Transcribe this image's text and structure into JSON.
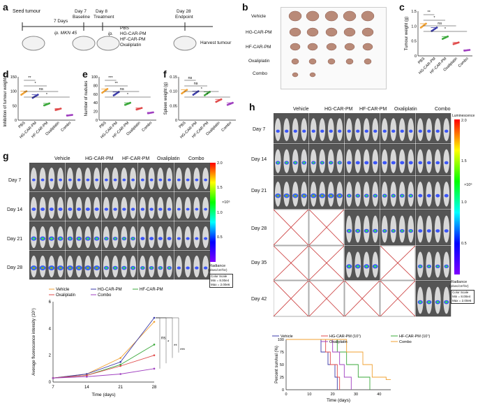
{
  "panel_labels": {
    "a": "a",
    "b": "b",
    "c": "c",
    "d": "d",
    "e": "e",
    "f": "f",
    "g": "g",
    "h": "h"
  },
  "timeline": {
    "seed": "Seed tumour",
    "ip1": "ip. MKN 45",
    "days7": "7 Days",
    "day7": "Day 7",
    "baseline": "Baseline",
    "day8": "Day 8",
    "treatment": "Treatment",
    "day28": "Day 28",
    "endpoint": "Endpoint",
    "ip2": "ip.",
    "drugs": [
      "PBS",
      "HG-CAR-PM",
      "HF-CAR-PM",
      "Oxaliplatin"
    ],
    "harvest": "Harvest tumour"
  },
  "tumour_photo": {
    "groups": [
      "Vehicle",
      "HG-CAR-PM",
      "HF-CAR-PM",
      "Oxaliplatin",
      "Combo"
    ]
  },
  "groups_short": [
    "PBS",
    "HG-CAR-PM",
    "HF-CAR-PM",
    "Oxaliplatin",
    "Combo"
  ],
  "colors": {
    "PBS": "#f0a030",
    "HG": "#3a3aa8",
    "HF": "#3aa83a",
    "OX": "#e04a4a",
    "CO": "#a040c0"
  },
  "chart_data": [
    {
      "panel": "c",
      "type": "scatter",
      "ylabel": "Tumour weight (g)",
      "ylim": [
        0,
        1.5
      ],
      "yticks": [
        "0",
        "0.5",
        "1.0",
        "1.5"
      ],
      "categories": [
        "PBS",
        "HG-CAR-PM",
        "HF-CAR-PM",
        "Oxaliplatin",
        "Combo"
      ],
      "means": [
        1.08,
        0.95,
        0.65,
        0.45,
        0.2
      ],
      "sig": [
        "**",
        "*",
        "ns",
        "*"
      ]
    },
    {
      "panel": "d",
      "type": "scatter",
      "ylabel": "Inhibition of tumour weight (%)",
      "ylim": [
        0,
        150
      ],
      "yticks": [
        "0",
        "50",
        "100",
        "150"
      ],
      "categories": [
        "PBS",
        "HG-CAR-PM",
        "HF-CAR-PM",
        "Oxaliplatin",
        "Combo"
      ],
      "means": [
        100,
        88,
        58,
        40,
        18
      ],
      "sig": [
        "**",
        "*",
        "ns",
        "*"
      ]
    },
    {
      "panel": "e",
      "type": "scatter",
      "ylabel": "Number of nudules",
      "ylim": [
        0,
        100
      ],
      "yticks": [
        "0",
        "20",
        "40",
        "60",
        "80",
        "100"
      ],
      "categories": [
        "PBS",
        "HG-CAR-PM",
        "HF-CAR-PM",
        "Oxaliplatin",
        "Combo"
      ],
      "means": [
        72,
        65,
        40,
        28,
        18
      ],
      "sig": [
        "***",
        "**",
        "ns",
        "*"
      ]
    },
    {
      "panel": "f",
      "type": "scatter",
      "ylabel": "Spleen weight (g)",
      "ylim": [
        0,
        0.15
      ],
      "yticks": [
        "0",
        "0.05",
        "0.10",
        "0.15"
      ],
      "categories": [
        "PBS",
        "HG-CAR-PM",
        "HF-CAR-PM",
        "Oxaliplatin",
        "Combo"
      ],
      "means": [
        0.105,
        0.1,
        0.098,
        0.072,
        0.06
      ],
      "sig": [
        "ns",
        "ns",
        "*",
        "*"
      ]
    },
    {
      "panel": "g-line",
      "type": "line",
      "xlabel": "Time (days)",
      "ylabel": "Average fluorescence intensity (10⁶)",
      "x": [
        7,
        14,
        21,
        28
      ],
      "xlim": [
        7,
        28
      ],
      "ylim": [
        0,
        6
      ],
      "yticks": [
        "0",
        "2",
        "4",
        "6"
      ],
      "series": [
        {
          "name": "Vehicle",
          "values": [
            0.3,
            0.6,
            1.8,
            4.5
          ]
        },
        {
          "name": "HG-CAR-PM",
          "values": [
            0.3,
            0.6,
            1.5,
            4.8
          ]
        },
        {
          "name": "HF-CAR-PM",
          "values": [
            0.3,
            0.5,
            1.3,
            2.8
          ]
        },
        {
          "name": "Oxaliplatin",
          "values": [
            0.3,
            0.5,
            1.2,
            2.0
          ]
        },
        {
          "name": "Combo",
          "values": [
            0.3,
            0.4,
            0.6,
            1.0
          ]
        }
      ],
      "sig": [
        "ns",
        "*",
        "**",
        "***"
      ]
    },
    {
      "panel": "h-survival",
      "type": "line",
      "xlabel": "Time (days)",
      "ylabel": "Percent survival (%)",
      "xlim": [
        0,
        45
      ],
      "ylim": [
        0,
        100
      ],
      "xticks": [
        "0",
        "10",
        "20",
        "30",
        "40"
      ],
      "yticks": [
        "0",
        "25",
        "50",
        "75",
        "100"
      ],
      "series": [
        {
          "name": "Vehicle",
          "steps": [
            [
              0,
              100
            ],
            [
              15,
              100
            ],
            [
              15,
              75
            ],
            [
              18,
              75
            ],
            [
              18,
              50
            ],
            [
              21,
              50
            ],
            [
              21,
              25
            ],
            [
              22,
              25
            ],
            [
              22,
              0
            ]
          ]
        },
        {
          "name": "HG-CAR-PM (10⁷)",
          "steps": [
            [
              0,
              100
            ],
            [
              17,
              100
            ],
            [
              17,
              75
            ],
            [
              19,
              75
            ],
            [
              19,
              50
            ],
            [
              22,
              50
            ],
            [
              22,
              25
            ],
            [
              23,
              25
            ],
            [
              23,
              0
            ]
          ]
        },
        {
          "name": "HF-CAR-PM (10⁷)",
          "steps": [
            [
              0,
              100
            ],
            [
              22,
              100
            ],
            [
              22,
              75
            ],
            [
              26,
              75
            ],
            [
              26,
              50
            ],
            [
              31,
              50
            ],
            [
              31,
              25
            ],
            [
              36,
              25
            ],
            [
              36,
              0
            ]
          ]
        },
        {
          "name": "Oxaliplatin",
          "steps": [
            [
              0,
              100
            ],
            [
              20,
              100
            ],
            [
              20,
              75
            ],
            [
              23,
              75
            ],
            [
              23,
              50
            ],
            [
              25,
              50
            ],
            [
              25,
              25
            ],
            [
              28,
              25
            ],
            [
              28,
              0
            ]
          ]
        },
        {
          "name": "Combo",
          "steps": [
            [
              0,
              100
            ],
            [
              26,
              100
            ],
            [
              26,
              75
            ],
            [
              33,
              75
            ],
            [
              33,
              50
            ],
            [
              37,
              50
            ],
            [
              37,
              25
            ],
            [
              43,
              25
            ],
            [
              43,
              20
            ],
            [
              45,
              20
            ]
          ]
        }
      ]
    }
  ],
  "imaging_g": {
    "cols": [
      "Vehicle",
      "HG-CAR-PM",
      "HF-CAR-PM",
      "Oxaliplatin",
      "Combo"
    ],
    "rows": [
      "Day 7",
      "Day 14",
      "Day 21",
      "Day 28"
    ],
    "scale_ticks": [
      "2.0",
      "1.5",
      "1.0",
      "0.5"
    ],
    "scale_exp": "×10⁶",
    "scale_unit": "Radiance",
    "scale_unit2": "(p/sec/cm²/sr)",
    "cs1": "Color Scale",
    "cs2": "Min = 8.00e4",
    "cs3": "Max = 2.00e6"
  },
  "imaging_h": {
    "cols": [
      "Vehicle",
      "HG-CAR-PM",
      "HF-CAR-PM",
      "Oxaliplatin",
      "Combo"
    ],
    "rows": [
      "Day 7",
      "Day 14",
      "Day 21",
      "Day 28",
      "Day 35",
      "Day 42"
    ],
    "scale_title": "Luminescence",
    "scale_ticks": [
      "2.0",
      "1.5",
      "1.0",
      "0.5"
    ],
    "scale_exp": "×10⁶",
    "scale_unit": "Radiance",
    "scale_unit2": "(p/sec/cm²/sr)",
    "cs1": "Color Scale",
    "cs2": "Min = 8.00e4",
    "cs3": "Max = 2.00e6"
  }
}
